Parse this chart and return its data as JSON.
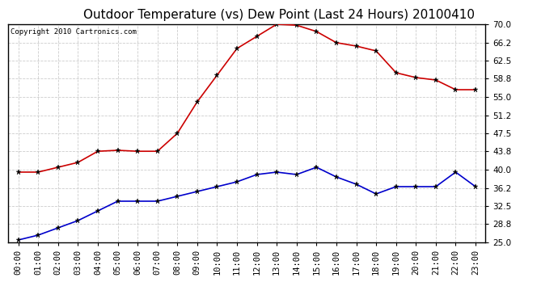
{
  "title": "Outdoor Temperature (vs) Dew Point (Last 24 Hours) 20100410",
  "copyright_text": "Copyright 2010 Cartronics.com",
  "hours": [
    "00:00",
    "01:00",
    "02:00",
    "03:00",
    "04:00",
    "05:00",
    "06:00",
    "07:00",
    "08:00",
    "09:00",
    "10:00",
    "11:00",
    "12:00",
    "13:00",
    "14:00",
    "15:00",
    "16:00",
    "17:00",
    "18:00",
    "19:00",
    "20:00",
    "21:00",
    "22:00",
    "23:00"
  ],
  "temp_red": [
    39.5,
    39.5,
    40.5,
    41.5,
    43.8,
    44.0,
    43.8,
    43.8,
    47.5,
    54.0,
    59.5,
    65.0,
    67.5,
    70.0,
    69.8,
    68.5,
    66.2,
    65.5,
    64.5,
    60.0,
    59.0,
    58.5,
    56.5,
    56.5
  ],
  "temp_blue": [
    25.5,
    26.5,
    28.0,
    29.5,
    31.5,
    33.5,
    33.5,
    33.5,
    34.5,
    35.5,
    36.5,
    37.5,
    39.0,
    39.5,
    39.0,
    40.5,
    38.5,
    37.0,
    35.0,
    36.5,
    36.5,
    36.5,
    39.5,
    36.5
  ],
  "ylim": [
    25.0,
    70.0
  ],
  "yticks": [
    25.0,
    28.8,
    32.5,
    36.2,
    40.0,
    43.8,
    47.5,
    51.2,
    55.0,
    58.8,
    62.5,
    66.2,
    70.0
  ],
  "background_color": "#ffffff",
  "plot_bg_color": "#ffffff",
  "grid_color": "#cccccc",
  "red_color": "#cc0000",
  "blue_color": "#0000cc",
  "title_fontsize": 11,
  "tick_fontsize": 7.5,
  "copyright_fontsize": 6.5
}
